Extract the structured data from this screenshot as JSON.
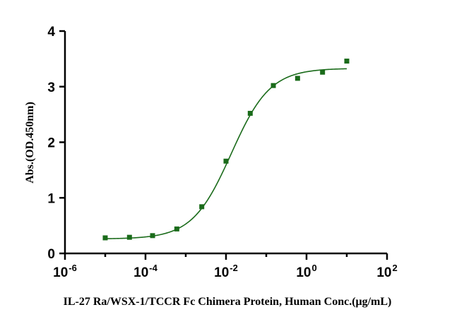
{
  "chart_data": {
    "type": "scatter",
    "title": "",
    "xlabel": "IL-27 Ra/WSX-1/TCCR Fc Chimera Protein, Human  Conc.(μg/mL)",
    "ylabel": "Abs.(OD.450nm)",
    "xscale": "log10",
    "xlim": [
      1e-06,
      100
    ],
    "ylim": [
      0,
      4
    ],
    "grid": false,
    "legend": "none",
    "x_ticks": [
      {
        "base": "10",
        "exp": "-6"
      },
      {
        "base": "10",
        "exp": "-4"
      },
      {
        "base": "10",
        "exp": "-2"
      },
      {
        "base": "10",
        "exp": "0"
      },
      {
        "base": "10",
        "exp": "2"
      }
    ],
    "y_ticks": [
      "0",
      "1",
      "2",
      "3",
      "4"
    ],
    "colors": {
      "points": "#1a6b1a",
      "curve": "#1a6b1a",
      "axis": "#000000"
    },
    "series": [
      {
        "marker": "square",
        "x": [
          1e-05,
          4e-05,
          0.00015,
          0.0006,
          0.0025,
          0.01,
          0.04,
          0.15,
          0.6,
          2.5,
          10
        ],
        "y": [
          0.28,
          0.29,
          0.32,
          0.44,
          0.84,
          1.66,
          2.52,
          3.02,
          3.15,
          3.26,
          3.46
        ]
      }
    ],
    "fit_curve": {
      "model": "4PL",
      "bottom": 0.26,
      "top": 3.33,
      "ec50": 0.0135,
      "hill": 0.9,
      "x_range": [
        1e-05,
        10
      ]
    }
  }
}
